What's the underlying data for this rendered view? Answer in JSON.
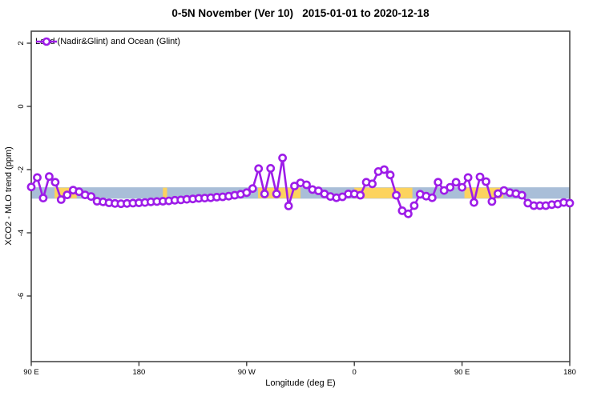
{
  "title": "0-5N November (Ver 10)   2015-01-01 to 2020-12-18",
  "legend": {
    "label": "Land (Nadir&Glint) and Ocean (Glint)"
  },
  "colors": {
    "series_purple": "#9D1CE8",
    "marker_fill": "#FFFFFF",
    "band_blue": "#A9BED8",
    "band_orange": "#FCD35E",
    "axis": "#3C3C3C",
    "text": "#000000"
  },
  "chart_data": {
    "type": "line",
    "title": "0-5N November (Ver 10)   2015-01-01 to 2020-12-18",
    "xlabel": "Longitude (deg E)",
    "ylabel": "XCO2 - MLO trend (ppm)",
    "x_start_deg_east": 90,
    "x_step_deg": 5,
    "x_count": 91,
    "x_ticks": {
      "positions": [
        0,
        18,
        36,
        54,
        72,
        90
      ],
      "labels": [
        "90 E",
        "180",
        "90 W",
        "0",
        "90 E",
        "180"
      ]
    },
    "y_ticks": {
      "values": [
        2,
        0,
        -2,
        -4,
        -6
      ],
      "labels": [
        "2",
        "0",
        "-2",
        "-4",
        "-6"
      ]
    },
    "ylim": [
      -8.1,
      2.4
    ],
    "grid": false,
    "legend_position": "top-left-inside",
    "series_name": "Land (Nadir&Glint) and Ocean (Glint)",
    "values": [
      -2.55,
      -2.25,
      -2.9,
      -2.22,
      -2.4,
      -2.95,
      -2.8,
      -2.65,
      -2.7,
      -2.8,
      -2.85,
      -3.0,
      -3.02,
      -3.05,
      -3.07,
      -3.08,
      -3.07,
      -3.06,
      -3.05,
      -3.04,
      -3.02,
      -3.01,
      -3.0,
      -2.99,
      -2.97,
      -2.96,
      -2.94,
      -2.93,
      -2.91,
      -2.9,
      -2.89,
      -2.87,
      -2.86,
      -2.84,
      -2.81,
      -2.78,
      -2.73,
      -2.6,
      -1.97,
      -2.77,
      -1.96,
      -2.77,
      -1.63,
      -3.15,
      -2.52,
      -2.42,
      -2.48,
      -2.63,
      -2.67,
      -2.77,
      -2.85,
      -2.89,
      -2.86,
      -2.77,
      -2.77,
      -2.81,
      -2.4,
      -2.45,
      -2.06,
      -2.0,
      -2.17,
      -2.81,
      -3.3,
      -3.4,
      -3.14,
      -2.78,
      -2.84,
      -2.89,
      -2.4,
      -2.66,
      -2.56,
      -2.4,
      -2.56,
      -2.25,
      -3.04,
      -2.23,
      -2.38,
      -3.01,
      -2.76,
      -2.66,
      -2.73,
      -2.76,
      -2.81,
      -3.06,
      -3.14,
      -3.14,
      -3.14,
      -3.11,
      -3.09,
      -3.04,
      -3.06
    ],
    "band": {
      "y_top": -2.56,
      "y_bottom": -2.92,
      "blue_x_index_range": [
        0,
        90
      ],
      "orange_segments_x_index": [
        [
          3.9,
          7.6
        ],
        [
          22.0,
          22.7
        ],
        [
          37.9,
          45.0
        ],
        [
          54.0,
          63.7
        ],
        [
          72.4,
          78.9
        ]
      ]
    }
  }
}
